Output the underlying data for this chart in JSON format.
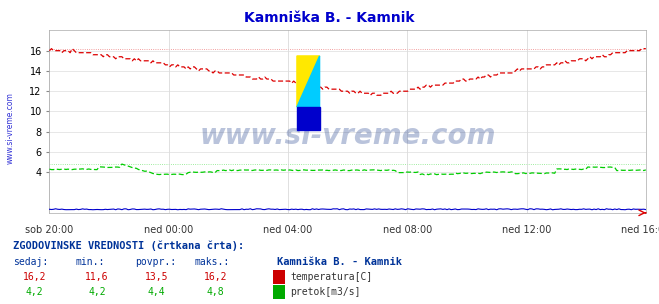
{
  "title": "Kamniška B. - Kamnik",
  "title_color": "#0000cc",
  "bg_color": "#ffffff",
  "plot_bg_color": "#ffffff",
  "x_labels": [
    "sob 20:00",
    "ned 00:00",
    "ned 04:00",
    "ned 08:00",
    "ned 12:00",
    "ned 16:00"
  ],
  "x_ticks_norm": [
    0.0,
    0.2,
    0.4,
    0.6,
    0.8,
    1.0
  ],
  "ylim": [
    0,
    18
  ],
  "yticks": [
    4,
    6,
    8,
    10,
    12,
    14,
    16
  ],
  "grid_color": "#dddddd",
  "temp_color": "#dd0000",
  "flow_color": "#00cc00",
  "height_color": "#0000cc",
  "watermark_text": "www.si-vreme.com",
  "watermark_color": "#1a3a8a",
  "sidebar_text": "www.si-vreme.com",
  "sidebar_color": "#0000cc",
  "legend_title": "Kamniška B. - Kamnik",
  "legend_label1": "temperatura[C]",
  "legend_label2": "pretok[m3/s]",
  "stats_header": "ZGODOVINSKE VREDNOSTI (črtkana črta):",
  "stats_cols": [
    "sedaj:",
    "min.:",
    "povpr.:",
    "maks.:"
  ],
  "stats_temp": [
    "16,2",
    "11,6",
    "13,5",
    "16,2"
  ],
  "stats_flow": [
    "4,2",
    "4,2",
    "4,4",
    "4,8"
  ],
  "temp_max_line": 16.2,
  "flow_max_line": 4.8,
  "n_points": 289
}
